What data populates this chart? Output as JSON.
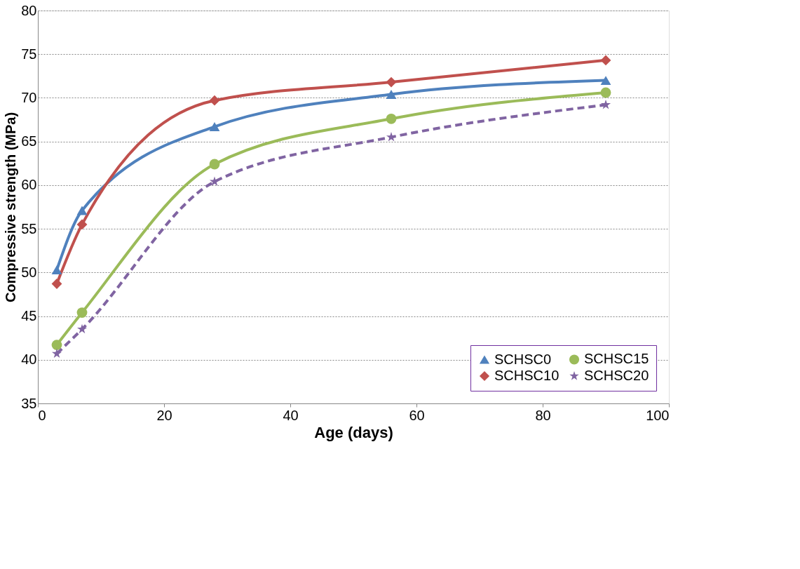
{
  "chart_data": {
    "type": "line",
    "xlabel": "Age (days)",
    "ylabel": "Compressive strength (MPa)",
    "xlim": [
      0,
      100
    ],
    "xticks": [
      0,
      20,
      40,
      60,
      80,
      100
    ],
    "ylim": [
      35,
      80
    ],
    "yticks": [
      35,
      40,
      45,
      50,
      55,
      60,
      65,
      70,
      75,
      80
    ],
    "grid": "y",
    "legend": "bottom right",
    "x": [
      3,
      7,
      28,
      56,
      90
    ],
    "series": [
      {
        "name": "SCHSC0",
        "color": "#4f81bd",
        "marker": "triangle",
        "line_style": "solid",
        "values": [
          50.3,
          57.1,
          66.7,
          70.4,
          72.0
        ]
      },
      {
        "name": "SCHSC10",
        "color": "#c0504d",
        "marker": "diamond",
        "line_style": "solid",
        "values": [
          48.7,
          55.5,
          69.7,
          71.8,
          74.3
        ]
      },
      {
        "name": "SCHSC15",
        "color": "#9bbb59",
        "marker": "circle",
        "line_style": "solid",
        "values": [
          41.7,
          45.4,
          62.4,
          67.6,
          70.6
        ]
      },
      {
        "name": "SCHSC20",
        "color": "#8064a2",
        "marker": "star",
        "line_style": "dashed",
        "values": [
          40.7,
          43.5,
          60.4,
          65.5,
          69.2
        ]
      }
    ]
  }
}
